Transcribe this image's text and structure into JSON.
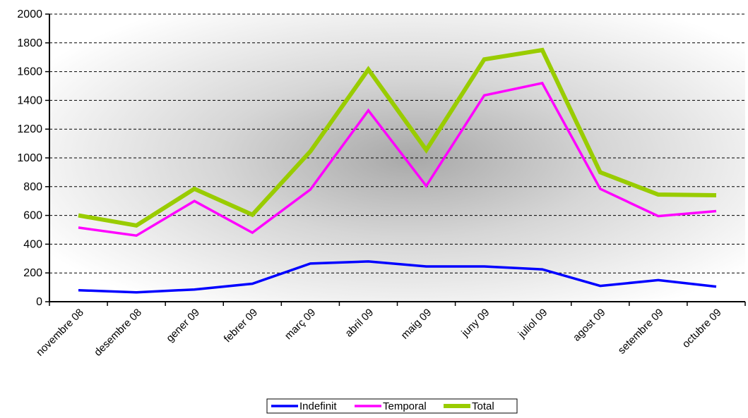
{
  "chart_data": {
    "type": "line",
    "categories": [
      "novembre 08",
      "desembre 08",
      "gener 09",
      "febrer 09",
      "març 09",
      "abril 09",
      "maig 09",
      "juny 09",
      "juliol 09",
      "agost 09",
      "setembre 09",
      "octubre 09"
    ],
    "series": [
      {
        "name": "Indefinit",
        "color": "#0000ff",
        "values": [
          80,
          65,
          85,
          125,
          265,
          280,
          245,
          245,
          225,
          110,
          150,
          105
        ]
      },
      {
        "name": "Temporal",
        "color": "#ff00ff",
        "values": [
          515,
          460,
          700,
          480,
          780,
          1330,
          805,
          1435,
          1520,
          785,
          595,
          630
        ]
      },
      {
        "name": "Total",
        "color": "#99cc00",
        "values": [
          600,
          530,
          785,
          605,
          1045,
          1615,
          1055,
          1685,
          1750,
          900,
          745,
          740
        ]
      }
    ],
    "y_ticks": [
      "0",
      "200",
      "400",
      "600",
      "800",
      "1000",
      "1200",
      "1400",
      "1600",
      "1800",
      "2000"
    ],
    "ylim": [
      0,
      2000
    ],
    "grid": true,
    "legend_position": "bottom-center"
  }
}
